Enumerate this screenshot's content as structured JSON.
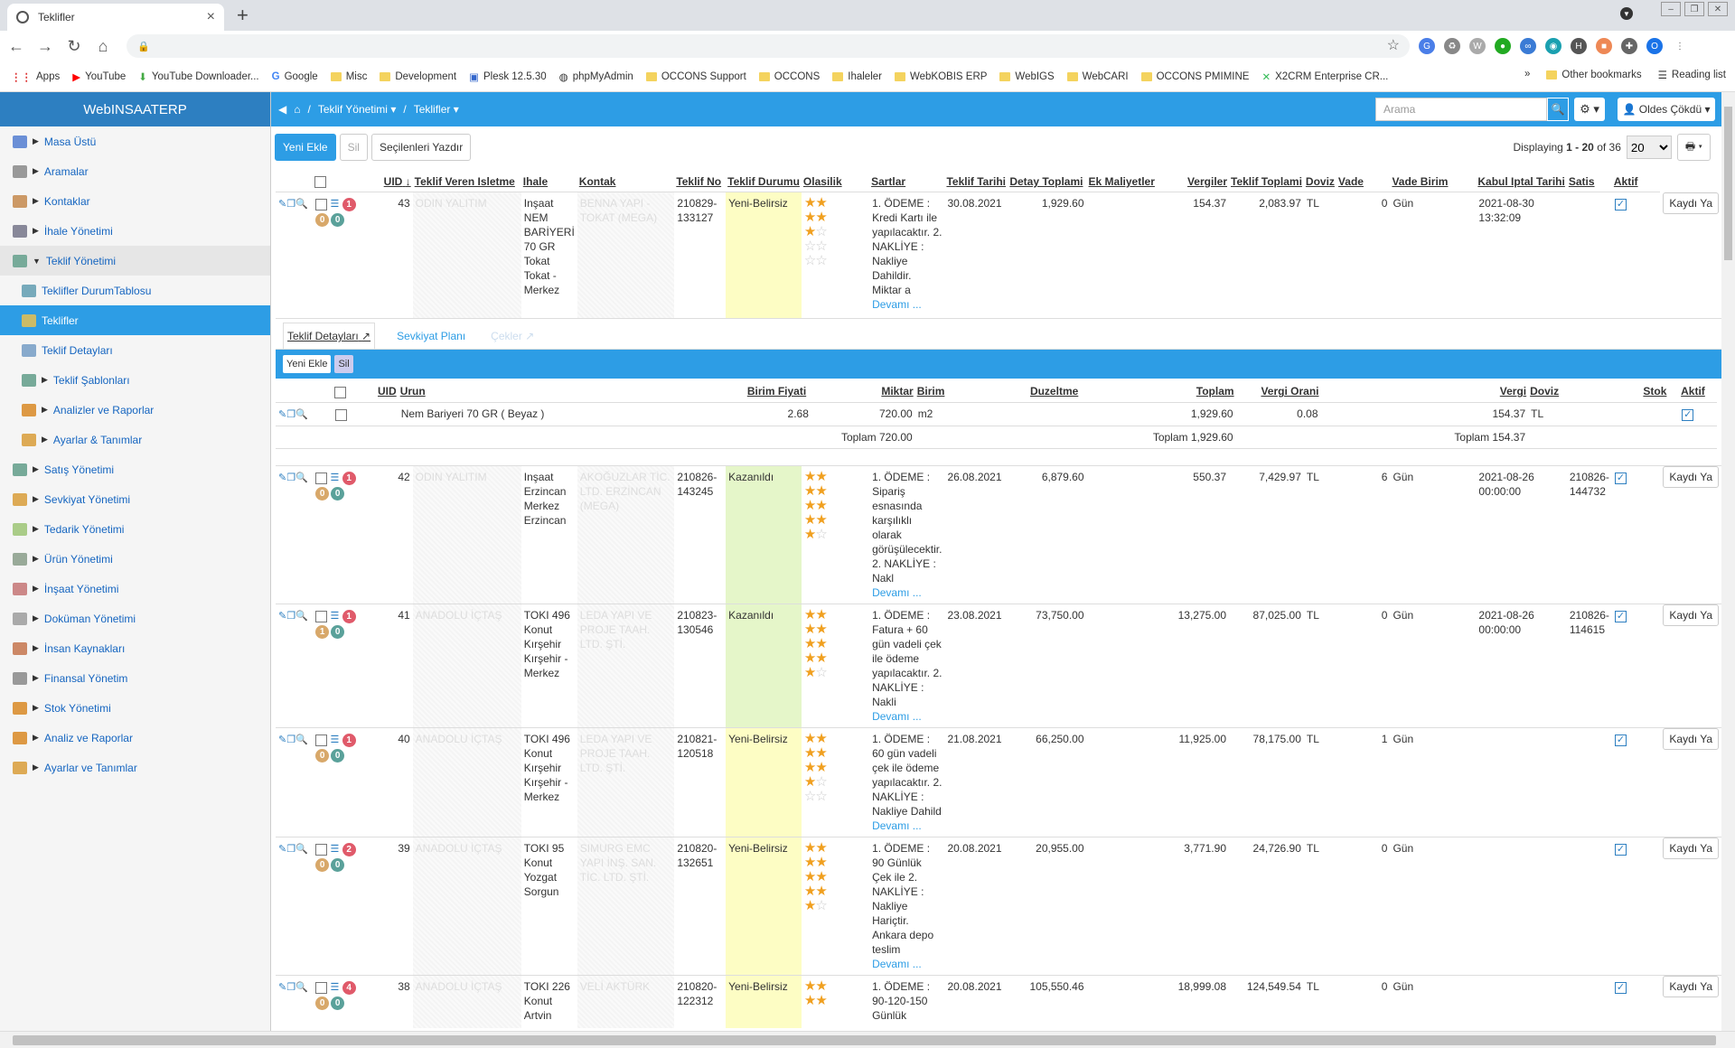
{
  "browser": {
    "tab_title": "Teklifler",
    "new_tab": "+",
    "bookmarks": [
      "Apps",
      "YouTube",
      "YouTube Downloader...",
      "Google",
      "Misc",
      "Development",
      "Plesk 12.5.30",
      "phpMyAdmin",
      "OCCONS Support",
      "OCCONS",
      "Ihaleler",
      "WebKOBIS ERP",
      "WebIGS",
      "WebCARI",
      "OCCONS PMIMINE",
      "X2CRM Enterprise CR..."
    ],
    "bookmarks_more": "»",
    "other_bookmarks": "Other bookmarks",
    "reading_list": "Reading list"
  },
  "sidebar": {
    "brand": "WebINSAATERP",
    "items": [
      {
        "label": "Masa Üstü"
      },
      {
        "label": "Aramalar"
      },
      {
        "label": "Kontaklar"
      },
      {
        "label": "İhale Yönetimi"
      },
      {
        "label": "Teklif Yönetimi"
      },
      {
        "label": "Teklifler DurumTablosu"
      },
      {
        "label": "Teklifler"
      },
      {
        "label": "Teklif Detayları"
      },
      {
        "label": "Teklif Şablonları"
      },
      {
        "label": "Analizler ve Raporlar"
      },
      {
        "label": "Ayarlar & Tanımlar"
      },
      {
        "label": "Satış Yönetimi"
      },
      {
        "label": "Sevkiyat Yönetimi"
      },
      {
        "label": "Tedarik Yönetimi"
      },
      {
        "label": "Ürün Yönetimi"
      },
      {
        "label": "İnşaat Yönetimi"
      },
      {
        "label": "Doküman Yönetimi"
      },
      {
        "label": "İnsan Kaynakları"
      },
      {
        "label": "Finansal Yönetim"
      },
      {
        "label": "Stok Yönetimi"
      },
      {
        "label": "Analiz ve Raporlar"
      },
      {
        "label": "Ayarlar ve Tanımlar"
      }
    ]
  },
  "topbar": {
    "sep1": "/",
    "crumb1": "Teklif Yönetimi",
    "sep2": "/",
    "crumb2": "Teklifler",
    "search_placeholder": "Arama",
    "user": "Oldes Çökdü"
  },
  "actions": {
    "new": "Yeni Ekle",
    "delete": "Sil",
    "print": "Seçilenleri Yazdır",
    "displaying_prefix": "Displaying ",
    "displaying_range": "1 - 20",
    "displaying_of": " of 36",
    "page_size": "20"
  },
  "columns": [
    "UID",
    "Teklif Veren Isletme",
    "Ihale",
    "Kontak",
    "Teklif No",
    "Teklif Durumu",
    "Olasilik",
    "Sartlar",
    "Teklif Tarihi",
    "Detay Toplami",
    "Ek Maliyetler",
    "Vergiler",
    "Teklif Toplami",
    "Doviz",
    "Vade",
    "Vade Birim",
    "Kabul Iptal Tarihi",
    "Satis",
    "Aktif"
  ],
  "rows": [
    {
      "badges": [
        "1",
        "0",
        "0"
      ],
      "uid": "43",
      "isletme": "ODIN YALITIM",
      "ihale": "Inşaat NEM BARİYERİ 70 GR Tokat Tokat - Merkez",
      "kontak": "BENNA YAPI - TOKAT (MEGA)",
      "no": "210829-133127",
      "durum": "Yeni-Belirsiz",
      "stars": "3",
      "sartlar": "1. ÖDEME : Kredi Kartı ile yapılacaktır. 2. NAKLİYE : Nakliye Dahildir. Miktar a",
      "more": "Devamı ...",
      "tarih": "30.08.2021",
      "detay": "1,929.60",
      "ek": "",
      "vergi": "154.37",
      "toplam": "2,083.97",
      "doviz": "TL",
      "vade": "0",
      "birim": "Gün",
      "kabul": "2021-08-30 13:32:09",
      "satis": "",
      "save": "Kaydı Ya"
    },
    {
      "badges": [
        "1",
        "0",
        "0"
      ],
      "uid": "42",
      "isletme": "ODIN YALITIM",
      "ihale": "Inşaat Erzincan Merkez Erzincan",
      "kontak": "AKOĞUZLAR TİC. LTD. ERZİNCAN (MEGA)",
      "no": "210826-143245",
      "durum": "Kazanıldı",
      "stars": "4",
      "sartlar": "1. ÖDEME : Sipariş esnasında karşılıklı olarak görüşülecektir. 2. NAKLİYE : Nakl",
      "more": "Devamı ...",
      "tarih": "26.08.2021",
      "detay": "6,879.60",
      "ek": "",
      "vergi": "550.37",
      "toplam": "7,429.97",
      "doviz": "TL",
      "vade": "6",
      "birim": "Gün",
      "kabul": "2021-08-26 00:00:00",
      "satis": "210826-144732",
      "save": "Kaydı Ya"
    },
    {
      "badges": [
        "1",
        "1",
        "0"
      ],
      "uid": "41",
      "isletme": "ANADOLU İÇTAŞ",
      "ihale": "TOKI 496 Konut Kırşehir Kırşehir - Merkez",
      "kontak": "LEDA YAPI VE PROJE TAAH. LTD. ŞTİ.",
      "no": "210823-130546",
      "durum": "Kazanıldı",
      "stars": "4",
      "sartlar": "1. ÖDEME : Fatura + 60 gün vadeli çek ile ödeme yapılacaktır. 2. NAKLİYE : Nakli",
      "more": "Devamı ...",
      "tarih": "23.08.2021",
      "detay": "73,750.00",
      "ek": "",
      "vergi": "13,275.00",
      "toplam": "87,025.00",
      "doviz": "TL",
      "vade": "0",
      "birim": "Gün",
      "kabul": "2021-08-26 00:00:00",
      "satis": "210826-114615",
      "save": "Kaydı Ya"
    },
    {
      "badges": [
        "1",
        "0",
        "0"
      ],
      "uid": "40",
      "isletme": "ANADOLU İÇTAŞ",
      "ihale": "TOKI 496 Konut Kırşehir Kırşehir - Merkez",
      "kontak": "LEDA YAPI VE PROJE TAAH. LTD. ŞTİ.",
      "no": "210821-120518",
      "durum": "Yeni-Belirsiz",
      "stars": "3",
      "sartlar": "1. ÖDEME : 60 gün vadeli çek ile ödeme yapılacaktır. 2. NAKLİYE : Nakliye Dahild",
      "more": "Devamı ...",
      "tarih": "21.08.2021",
      "detay": "66,250.00",
      "ek": "",
      "vergi": "11,925.00",
      "toplam": "78,175.00",
      "doviz": "TL",
      "vade": "1",
      "birim": "Gün",
      "kabul": "",
      "satis": "",
      "save": "Kaydı Ya"
    },
    {
      "badges": [
        "2",
        "0",
        "0"
      ],
      "uid": "39",
      "isletme": "ANADOLU İÇTAŞ",
      "ihale": "TOKI 95 Konut Yozgat Sorgun",
      "kontak": "SIMURG EMC YAPI İNŞ. SAN. TİC. LTD. ŞTİ.",
      "no": "210820-132651",
      "durum": "Yeni-Belirsiz",
      "stars": "4",
      "sartlar": "1. ÖDEME : 90 Günlük Çek ile 2. NAKLİYE : Nakliye Hariçtir. Ankara depo teslim",
      "more": "Devamı ...",
      "tarih": "20.08.2021",
      "detay": "20,955.00",
      "ek": "",
      "vergi": "3,771.90",
      "toplam": "24,726.90",
      "doviz": "TL",
      "vade": "0",
      "birim": "Gün",
      "kabul": "",
      "satis": "",
      "save": "Kaydı Ya"
    },
    {
      "badges": [
        "4",
        "0",
        "0"
      ],
      "uid": "38",
      "isletme": "ANADOLU İÇTAŞ",
      "ihale": "TOKI 226 Konut Artvin",
      "kontak": "VELİ AKTÜRK",
      "no": "210820-122312",
      "durum": "Yeni-Belirsiz",
      "stars": "4",
      "sartlar": "1. ÖDEME : 90-120-150 Günlük",
      "more": "",
      "tarih": "20.08.2021",
      "detay": "105,550.46",
      "ek": "",
      "vergi": "18,999.08",
      "toplam": "124,549.54",
      "doviz": "TL",
      "vade": "0",
      "birim": "Gün",
      "kabul": "",
      "satis": "",
      "save": "Kaydı Ya"
    }
  ],
  "detail": {
    "tabs": [
      "Teklif Detayları",
      "Sevkiyat Planı",
      "Çekler"
    ],
    "new": "Yeni Ekle",
    "delete": "Sil",
    "columns": [
      "UID",
      "Urun",
      "Birim Fiyati",
      "Miktar",
      "Birim",
      "Duzeltme",
      "Toplam",
      "Vergi Orani",
      "Vergi",
      "Doviz",
      "Stok",
      "Aktif"
    ],
    "row": {
      "urun": "Nem Bariyeri 70 GR ( Beyaz )",
      "fiyat": "2.68",
      "miktar": "720.00",
      "birim": "m2",
      "toplam": "1,929.60",
      "oran": "0.08",
      "vergi": "154.37",
      "doviz": "TL"
    },
    "sum_miktar": "Toplam 720.00",
    "sum_toplam": "Toplam 1,929.60",
    "sum_vergi": "Toplam 154.37"
  }
}
